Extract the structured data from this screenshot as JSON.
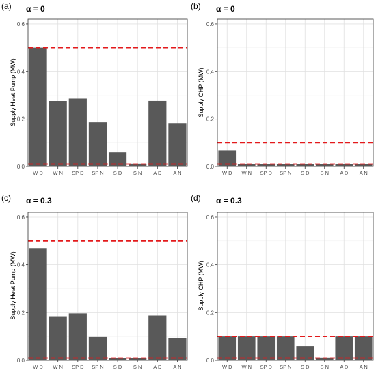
{
  "panels": [
    {
      "tag": "(a)",
      "alpha_label": "α = 0",
      "chart_data": {
        "type": "bar",
        "categories": [
          "W D",
          "W N",
          "SP D",
          "SP N",
          "S D",
          "S N",
          "A D",
          "A N"
        ],
        "values": [
          0.5,
          0.275,
          0.287,
          0.187,
          0.06,
          0.012,
          0.277,
          0.181
        ],
        "xlabel": "",
        "ylabel": "Supply Heat Pump (MW)",
        "ylim": [
          0,
          0.62
        ],
        "yticks": [
          "0.0",
          "0.2",
          "0.4",
          "0.6"
        ],
        "ytick_values": [
          0,
          0.2,
          0.4,
          0.6
        ],
        "reference_lines": [
          0.5,
          0.01
        ],
        "grid": true
      }
    },
    {
      "tag": "(b)",
      "alpha_label": "α = 0",
      "chart_data": {
        "type": "bar",
        "categories": [
          "W D",
          "W N",
          "SP D",
          "SP N",
          "S D",
          "S N",
          "A D",
          "A N"
        ],
        "values": [
          0.068,
          0.01,
          0.01,
          0.01,
          0.01,
          0.01,
          0.01,
          0.01
        ],
        "xlabel": "",
        "ylabel": "Supply CHP (MW)",
        "ylim": [
          0,
          0.62
        ],
        "yticks": [
          "0.0",
          "0.2",
          "0.4",
          "0.6"
        ],
        "ytick_values": [
          0,
          0.2,
          0.4,
          0.6
        ],
        "reference_lines": [
          0.1,
          0.01
        ],
        "grid": true
      }
    },
    {
      "tag": "(c)",
      "alpha_label": "α = 0.3",
      "chart_data": {
        "type": "bar",
        "categories": [
          "W D",
          "W N",
          "SP D",
          "SP N",
          "S D",
          "S N",
          "A D",
          "A N"
        ],
        "values": [
          0.47,
          0.185,
          0.197,
          0.098,
          0.009,
          0.009,
          0.188,
          0.092
        ],
        "xlabel": "",
        "ylabel": "Supply Heat Pump (MW)",
        "ylim": [
          0,
          0.62
        ],
        "yticks": [
          "0.0",
          "0.2",
          "0.4",
          "0.6"
        ],
        "ytick_values": [
          0,
          0.2,
          0.4,
          0.6
        ],
        "reference_lines": [
          0.5,
          0.01
        ],
        "grid": true
      }
    },
    {
      "tag": "(d)",
      "alpha_label": "α = 0.3",
      "chart_data": {
        "type": "bar",
        "categories": [
          "W D",
          "W N",
          "SP D",
          "SP N",
          "S D",
          "S N",
          "A D",
          "A N"
        ],
        "values": [
          0.1,
          0.1,
          0.1,
          0.1,
          0.06,
          0.012,
          0.1,
          0.1
        ],
        "xlabel": "",
        "ylabel": "Supply CHP (MW)",
        "ylim": [
          0,
          0.62
        ],
        "yticks": [
          "0.0",
          "0.2",
          "0.4",
          "0.6"
        ],
        "ytick_values": [
          0,
          0.2,
          0.4,
          0.6
        ],
        "reference_lines": [
          0.1,
          0.01
        ],
        "grid": true
      }
    }
  ],
  "colors": {
    "bar": "#595959",
    "reference_line": "#e31a1c",
    "grid_major": "#e0e0e0",
    "grid_minor": "#f0f0f0",
    "panel_border": "#333333",
    "text": "#222222",
    "tick_text": "#4d4d4d"
  }
}
